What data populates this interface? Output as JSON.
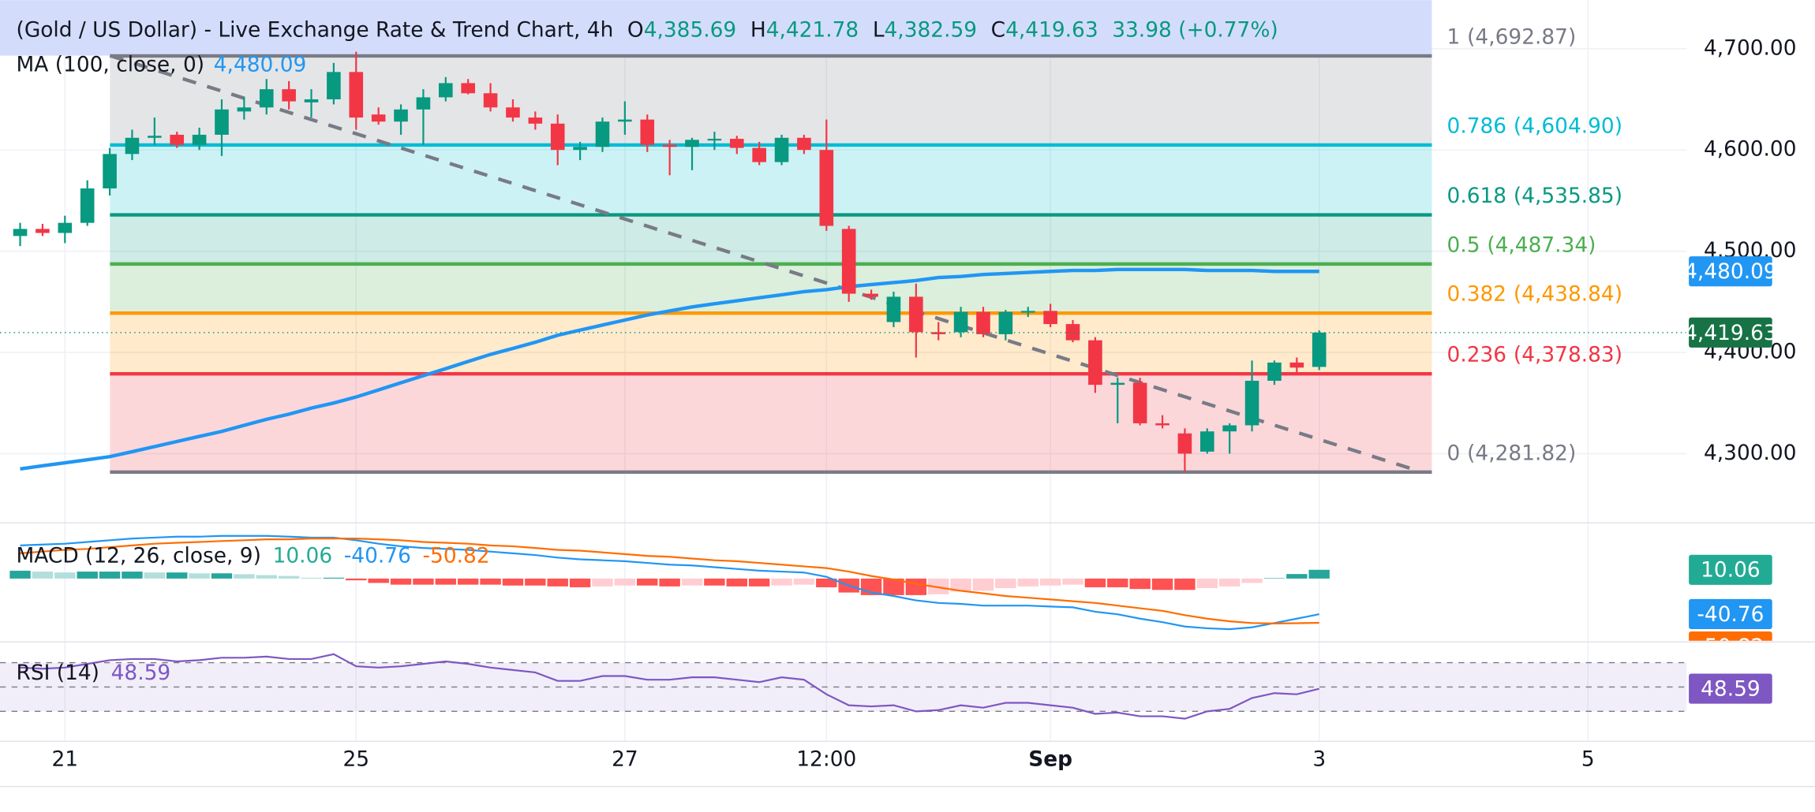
{
  "chart_data": {
    "type": "candlestick",
    "title": "(Gold / US Dollar) - Live Exchange Rate & Trend Chart, 4h",
    "legend_ohlc": [
      {
        "key": "O",
        "text": "4,385.69"
      },
      {
        "key": "H",
        "text": "4,421.78"
      },
      {
        "key": "L",
        "text": "4,382.59"
      },
      {
        "key": "C",
        "text": "4,419.63"
      }
    ],
    "change": "33.98 (+0.77%)",
    "up_color": "#089981",
    "down_color": "#f23645",
    "open": [
      4515,
      4522,
      4518,
      4528,
      4562,
      4596,
      4612,
      4615,
      4605,
      4615,
      4638,
      4642,
      4660,
      4647,
      4650,
      4677,
      4635,
      4628,
      4640,
      4652,
      4666,
      4656,
      4642,
      4632,
      4626,
      4600,
      4603,
      4628,
      4630,
      4605,
      4603,
      4610,
      4611,
      4602,
      4588,
      4612,
      4600,
      4522,
      4458,
      4430,
      4455,
      4420,
      4420,
      4440,
      4418,
      4440,
      4441,
      4428,
      4412,
      4368,
      4370,
      4330,
      4320,
      4302,
      4322,
      4328,
      4372,
      4390,
      4385.69
    ],
    "high": [
      4528,
      4527,
      4535,
      4570,
      4602,
      4620,
      4632,
      4618,
      4622,
      4650,
      4652,
      4670,
      4668,
      4660,
      4686,
      4697,
      4642,
      4645,
      4660,
      4672,
      4670,
      4666,
      4650,
      4638,
      4635,
      4608,
      4632,
      4648,
      4635,
      4610,
      4612,
      4618,
      4614,
      4608,
      4615,
      4615,
      4630,
      4525,
      4462,
      4460,
      4468,
      4430,
      4445,
      4445,
      4442,
      4445,
      4448,
      4432,
      4415,
      4375,
      4375,
      4338,
      4325,
      4325,
      4330,
      4392,
      4392,
      4395,
      4421.78
    ],
    "low": [
      4505,
      4515,
      4508,
      4525,
      4555,
      4590,
      4605,
      4602,
      4600,
      4594,
      4630,
      4635,
      4640,
      4632,
      4645,
      4620,
      4625,
      4615,
      4605,
      4648,
      4655,
      4638,
      4628,
      4620,
      4585,
      4590,
      4598,
      4615,
      4598,
      4575,
      4580,
      4600,
      4596,
      4585,
      4585,
      4596,
      4520,
      4450,
      4452,
      4425,
      4395,
      4412,
      4415,
      4415,
      4412,
      4435,
      4425,
      4410,
      4360,
      4330,
      4328,
      4325,
      4282,
      4300,
      4300,
      4322,
      4368,
      4380,
      4382.59
    ],
    "close": [
      4522,
      4518,
      4528,
      4562,
      4596,
      4612,
      4614,
      4605,
      4615,
      4640,
      4642,
      4660,
      4648,
      4650,
      4677,
      4632,
      4628,
      4640,
      4652,
      4666,
      4656,
      4642,
      4632,
      4626,
      4600,
      4603,
      4628,
      4630,
      4605,
      4603,
      4610,
      4611,
      4602,
      4588,
      4612,
      4600,
      4525,
      4458,
      4455,
      4455,
      4420,
      4418,
      4440,
      4418,
      4440,
      4441,
      4428,
      4412,
      4368,
      4370,
      4330,
      4328,
      4300,
      4322,
      4328,
      4372,
      4390,
      4385,
      4419.63
    ],
    "xlim": [
      -0.9,
      74.4
    ],
    "xticks": [
      {
        "value": 2,
        "label": "21"
      },
      {
        "value": 15,
        "label": "25"
      },
      {
        "value": 27,
        "label": "27"
      },
      {
        "value": 36,
        "label": "12:00"
      },
      {
        "value": 46,
        "label": "Sep"
      },
      {
        "value": 58,
        "label": "3"
      },
      {
        "value": 70,
        "label": "5"
      }
    ],
    "ylim": [
      4234,
      4748
    ],
    "yticks": [
      {
        "value": 4300,
        "label": "4,300.00"
      },
      {
        "value": 4400,
        "label": "4,400.00"
      },
      {
        "value": 4500,
        "label": "4,500.00"
      },
      {
        "value": 4600,
        "label": "4,600.00"
      },
      {
        "value": 4700,
        "label": "4,700.00"
      }
    ],
    "grid": true,
    "ma": {
      "name": "MA (100, close, 0)",
      "color": "#2196f3",
      "value_label": "4,480.09",
      "values": [
        4285,
        4288,
        4291,
        4294,
        4297,
        4302,
        4307,
        4312,
        4317,
        4322,
        4328,
        4334,
        4339,
        4345,
        4350,
        4356,
        4363,
        4370,
        4377,
        4384,
        4391,
        4398,
        4404,
        4410,
        4417,
        4422,
        4427,
        4432,
        4437,
        4441,
        4445,
        4448,
        4451,
        4454,
        4457,
        4460,
        4462,
        4465,
        4467,
        4469,
        4471,
        4474,
        4475,
        4477,
        4478,
        4479,
        4480,
        4481,
        4481,
        4482,
        4482,
        4482,
        4482,
        4481,
        4481,
        4481,
        4480,
        4480,
        4480.09
      ]
    },
    "fib": {
      "levels": [
        {
          "ratio": 1,
          "value": 4692.87,
          "value_label": "(4,692.87)",
          "color": "#787b86"
        },
        {
          "ratio": 0.786,
          "value": 4604.9,
          "value_label": "(4,604.90)",
          "color": "#00bcd4"
        },
        {
          "ratio": 0.618,
          "value": 4535.85,
          "value_label": "(4,535.85)",
          "color": "#089981"
        },
        {
          "ratio": 0.5,
          "value": 4487.34,
          "value_label": "(4,487.34)",
          "color": "#4caf50"
        },
        {
          "ratio": 0.382,
          "value": 4438.84,
          "value_label": "(4,438.84)",
          "color": "#ff9800"
        },
        {
          "ratio": 0.236,
          "value": 4378.83,
          "value_label": "(4,378.83)",
          "color": "#f23645"
        },
        {
          "ratio": 0,
          "value": 4281.82,
          "value_label": "(4,281.82)",
          "color": "#787b86"
        }
      ]
    },
    "macd": {
      "name": "MACD (12, 26, close, 9)",
      "ylim": [
        -70,
        60
      ],
      "histogram": {
        "up_color": "#26a69a",
        "up_light": "#b2dfdb",
        "down_color": "#ff5252",
        "down_light": "#ffcdd2",
        "values": [
          9,
          8,
          7,
          8,
          8,
          8,
          7,
          7,
          6,
          6,
          5,
          4,
          3,
          1,
          1,
          -2,
          -5,
          -7,
          -7,
          -7,
          -7,
          -7,
          -8,
          -8,
          -9,
          -10,
          -9,
          -8,
          -8,
          -9,
          -8,
          -8,
          -9,
          -9,
          -8,
          -7,
          -10,
          -16,
          -19,
          -19,
          -19,
          -18,
          -15,
          -14,
          -11,
          -9,
          -8,
          -7,
          -10,
          -10,
          -12,
          -13,
          -13,
          -11,
          -9,
          -5,
          0.5,
          5.2,
          10.06
        ]
      },
      "macd": {
        "color": "#2196f3",
        "values": [
          38,
          39,
          40,
          42,
          44,
          46,
          47,
          48,
          48,
          49,
          49,
          49,
          48,
          47,
          47,
          44,
          40,
          37,
          35,
          34,
          33,
          31,
          29,
          27,
          24,
          22,
          21,
          20,
          18,
          16,
          15,
          13,
          11,
          9,
          8,
          7,
          2,
          -8,
          -16,
          -20,
          -25,
          -28,
          -29,
          -31,
          -31,
          -31,
          -32,
          -33,
          -38,
          -41,
          -46,
          -50,
          -55,
          -57,
          -58,
          -56,
          -51,
          -46,
          -40.76
        ]
      },
      "signal": {
        "color": "#ff6d00",
        "values": [
          29,
          31,
          33,
          34,
          36,
          38,
          40,
          41,
          42,
          43,
          44,
          45,
          45,
          46,
          46,
          46,
          45,
          44,
          42,
          41,
          40,
          38,
          37,
          35,
          33,
          32,
          30,
          28,
          26,
          25,
          23,
          21,
          20,
          18,
          16,
          14,
          12,
          8,
          3,
          -1,
          -6,
          -10,
          -14,
          -17,
          -20,
          -22,
          -24,
          -26,
          -28,
          -31,
          -34,
          -37,
          -42,
          -46,
          -49,
          -51,
          -51.5,
          -51.2,
          -50.82
        ]
      }
    },
    "rsi": {
      "name": "RSI (14)",
      "color": "#7e57c2",
      "ylim": [
        12,
        88
      ],
      "yticks": [
        30,
        50,
        70
      ],
      "values": [
        66,
        65,
        66,
        69,
        72,
        73,
        73,
        71,
        72,
        74,
        74,
        75,
        73,
        73,
        77,
        67,
        66,
        67,
        69,
        71,
        69,
        66,
        64,
        62,
        55,
        55,
        59,
        59,
        56,
        56,
        58,
        58,
        56,
        54,
        58,
        56,
        44,
        35,
        34,
        35,
        30,
        31,
        35,
        33,
        37,
        37,
        35,
        33,
        28,
        29,
        26,
        26,
        24,
        30,
        32,
        41,
        45,
        44,
        48.59
      ]
    }
  }
}
